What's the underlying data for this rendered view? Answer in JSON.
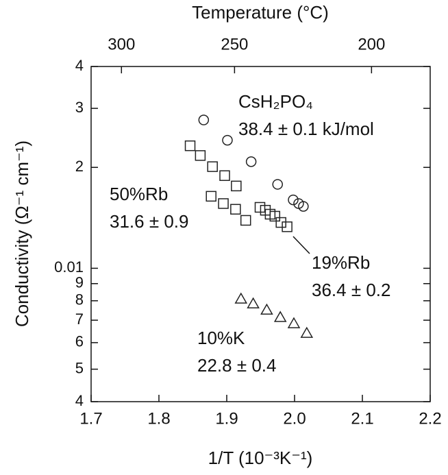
{
  "chart_data": {
    "type": "scatter",
    "x_label": "1/T (10⁻³K⁻¹)",
    "y_label": "Conductivity (Ω⁻¹ cm⁻¹)",
    "x2_label": "Temperature (°C)",
    "xlim": [
      1.7,
      2.2
    ],
    "xticks": [
      1.7,
      1.8,
      1.9,
      {
        "value": 2,
        "label": "2.0"
      },
      2.1,
      2.2
    ],
    "x2ticks": [
      300,
      250,
      200
    ],
    "ylim": [
      0.004,
      0.04
    ],
    "y_scale": "log",
    "yticks": [
      {
        "value": 0.004,
        "label": "4"
      },
      {
        "value": 0.005,
        "label": "5"
      },
      {
        "value": 0.006,
        "label": "6"
      },
      {
        "value": 0.007,
        "label": "7"
      },
      {
        "value": 0.008,
        "label": "8"
      },
      {
        "value": 0.009,
        "label": "9"
      },
      0.01,
      {
        "value": 0.02,
        "label": "2"
      },
      {
        "value": 0.03,
        "label": "3"
      },
      {
        "value": 0.04,
        "label": "4"
      }
    ],
    "series": [
      {
        "name": "CsH₂PO₄",
        "activation_energy": "38.4 ± 0.1 kJ/mol",
        "marker": "circle",
        "color": "#222222",
        "x": [
          1.866,
          1.901,
          1.936,
          1.975,
          1.998,
          2.006,
          2.013
        ],
        "values": [
          0.0277,
          0.0241,
          0.0208,
          0.0178,
          0.016,
          0.0156,
          0.0153
        ]
      },
      {
        "name": "50%Rb",
        "activation_energy": "31.6 ± 0.9",
        "marker": "square",
        "color": "#222222",
        "x": [
          1.846,
          1.861,
          1.879,
          1.897,
          1.914,
          1.877,
          1.895,
          1.913,
          1.928
        ],
        "values": [
          0.0232,
          0.0217,
          0.0201,
          0.0189,
          0.0176,
          0.0164,
          0.0156,
          0.015,
          0.0139
        ]
      },
      {
        "name": "19%Rb",
        "activation_energy": "36.4 ± 0.2",
        "marker": "square",
        "color": "#222222",
        "x": [
          1.949,
          1.957,
          1.964,
          1.971,
          1.98,
          1.989
        ],
        "values": [
          0.0152,
          0.0149,
          0.0145,
          0.0143,
          0.0137,
          0.0133
        ]
      },
      {
        "name": "10%K",
        "activation_energy": "22.8 ± 0.4",
        "marker": "triangle",
        "color": "#222222",
        "x": [
          1.921,
          1.939,
          1.959,
          1.979,
          1.999,
          2.018
        ],
        "values": [
          0.0081,
          0.00784,
          0.00751,
          0.00714,
          0.00684,
          0.0064
        ]
      }
    ]
  }
}
